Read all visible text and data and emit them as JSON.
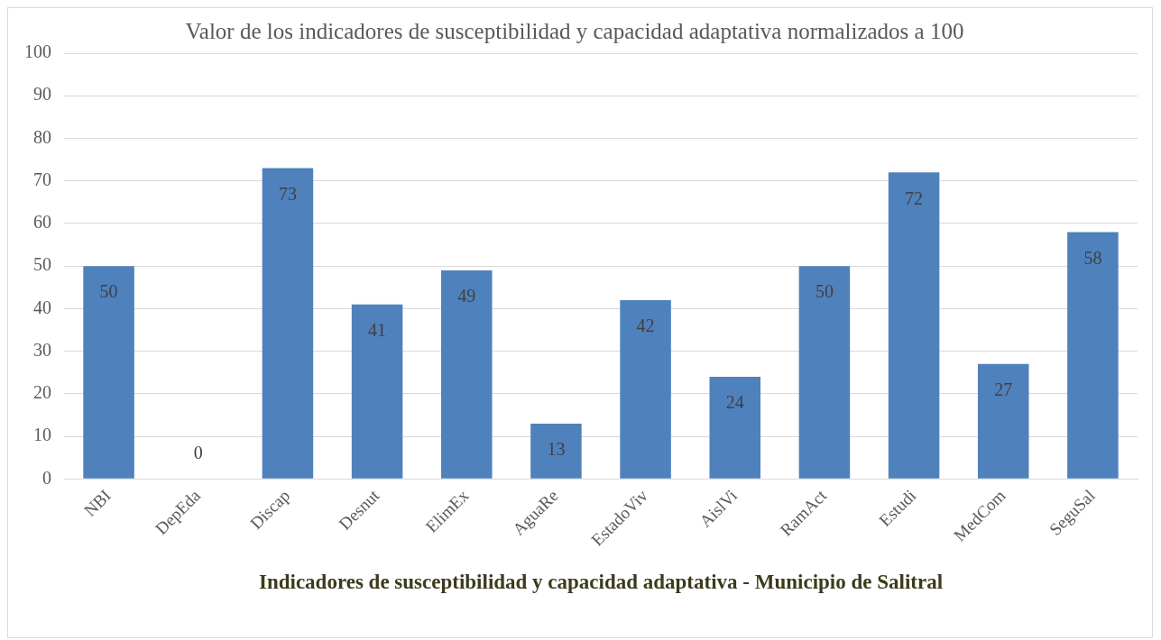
{
  "chart_data": {
    "type": "bar",
    "title": "Valor de los indicadores de susceptibilidad y capacidad adaptativa normalizados a 100",
    "xlabel": "Indicadores de susceptibilidad y capacidad adaptativa - Municipio de Salitral",
    "categories": [
      "NBI",
      "DepEda",
      "Discap",
      "Desnut",
      "ElimEx",
      "AguaRe",
      "EstadoViv",
      "AislVi",
      "RamAct",
      "Estudi",
      "MedCom",
      "SeguSal"
    ],
    "values": [
      50,
      0,
      73,
      41,
      49,
      13,
      42,
      24,
      50,
      72,
      27,
      58
    ],
    "color": "#4f81bd",
    "ylim": [
      0,
      100
    ],
    "yticks": [
      0,
      10,
      20,
      30,
      40,
      50,
      60,
      70,
      80,
      90,
      100
    ],
    "grid": "y",
    "data_labels": true,
    "legend": false
  }
}
